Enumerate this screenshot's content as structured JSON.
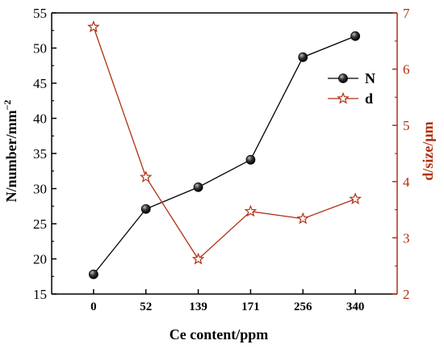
{
  "chart_data": {
    "type": "line",
    "xlabel": "Ce content/ppm",
    "ylabel_left": "N/number/mm",
    "ylabel_left_sup": "−2",
    "ylabel_right": "d/size/μm",
    "categories": [
      "0",
      "52",
      "139",
      "171",
      "256",
      "340"
    ],
    "left_axis": {
      "ylim": [
        15,
        55
      ],
      "ticks": [
        15,
        20,
        25,
        30,
        35,
        40,
        45,
        50,
        55
      ]
    },
    "right_axis": {
      "ylim": [
        2,
        7
      ],
      "ticks": [
        2,
        3,
        4,
        5,
        6,
        7
      ]
    },
    "series": [
      {
        "name": "N",
        "axis": "left",
        "marker": "sphere",
        "color": "#000000",
        "values": [
          17.8,
          27.1,
          30.2,
          34.1,
          48.7,
          51.7
        ]
      },
      {
        "name": "d",
        "axis": "right",
        "marker": "star",
        "color": "#b03010",
        "values": [
          6.75,
          4.08,
          2.62,
          3.47,
          3.34,
          3.69
        ]
      }
    ],
    "legend_position": "top-right",
    "grid": false
  },
  "colors": {
    "left_axis": "#000000",
    "right_axis": "#b03010"
  }
}
